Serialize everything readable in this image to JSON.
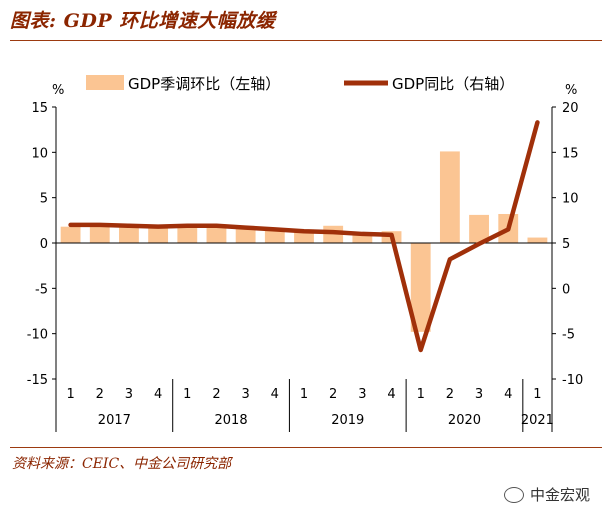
{
  "header": {
    "title": "图表: GDP 环比增速大幅放缓"
  },
  "footer": {
    "source": "资料来源：CEIC、中金公司研究部"
  },
  "watermark": {
    "text": "中金宏观",
    "icon": "wechat-icon"
  },
  "colors": {
    "bar": "#FBC593",
    "line": "#A0300A",
    "accent": "#8B2500"
  },
  "chart_data": {
    "type": "bar+line",
    "left_axis": {
      "unit": "%",
      "ylim": [
        -15,
        15
      ],
      "ticks": [
        "15",
        "10",
        "5",
        "0",
        "-5",
        "-10",
        "-15"
      ]
    },
    "right_axis": {
      "unit": "%",
      "ylim": [
        -10,
        20
      ],
      "ticks": [
        "20",
        "15",
        "10",
        "5",
        "0",
        "-5",
        "-10"
      ]
    },
    "quarters": [
      "1",
      "2",
      "3",
      "4",
      "1",
      "2",
      "3",
      "4",
      "1",
      "2",
      "3",
      "4",
      "1",
      "2",
      "3",
      "4",
      "1"
    ],
    "years": [
      "2017",
      "2018",
      "2019",
      "2020",
      "2021"
    ],
    "year_quarter_counts": [
      4,
      4,
      4,
      4,
      1
    ],
    "series": [
      {
        "name": "GDP季调环比（左轴）",
        "type": "bar",
        "axis": "left",
        "values": [
          1.8,
          1.9,
          1.7,
          1.6,
          1.8,
          1.8,
          1.6,
          1.5,
          1.5,
          1.9,
          1.2,
          1.3,
          -9.8,
          10.1,
          3.1,
          3.2,
          0.6
        ]
      },
      {
        "name": "GDP同比（右轴）",
        "type": "line",
        "axis": "right",
        "values": [
          7.0,
          7.0,
          6.9,
          6.8,
          6.9,
          6.9,
          6.7,
          6.5,
          6.3,
          6.2,
          6.0,
          5.9,
          -6.8,
          3.2,
          4.9,
          6.5,
          18.3
        ]
      }
    ],
    "legend": {
      "placement": "top"
    }
  }
}
